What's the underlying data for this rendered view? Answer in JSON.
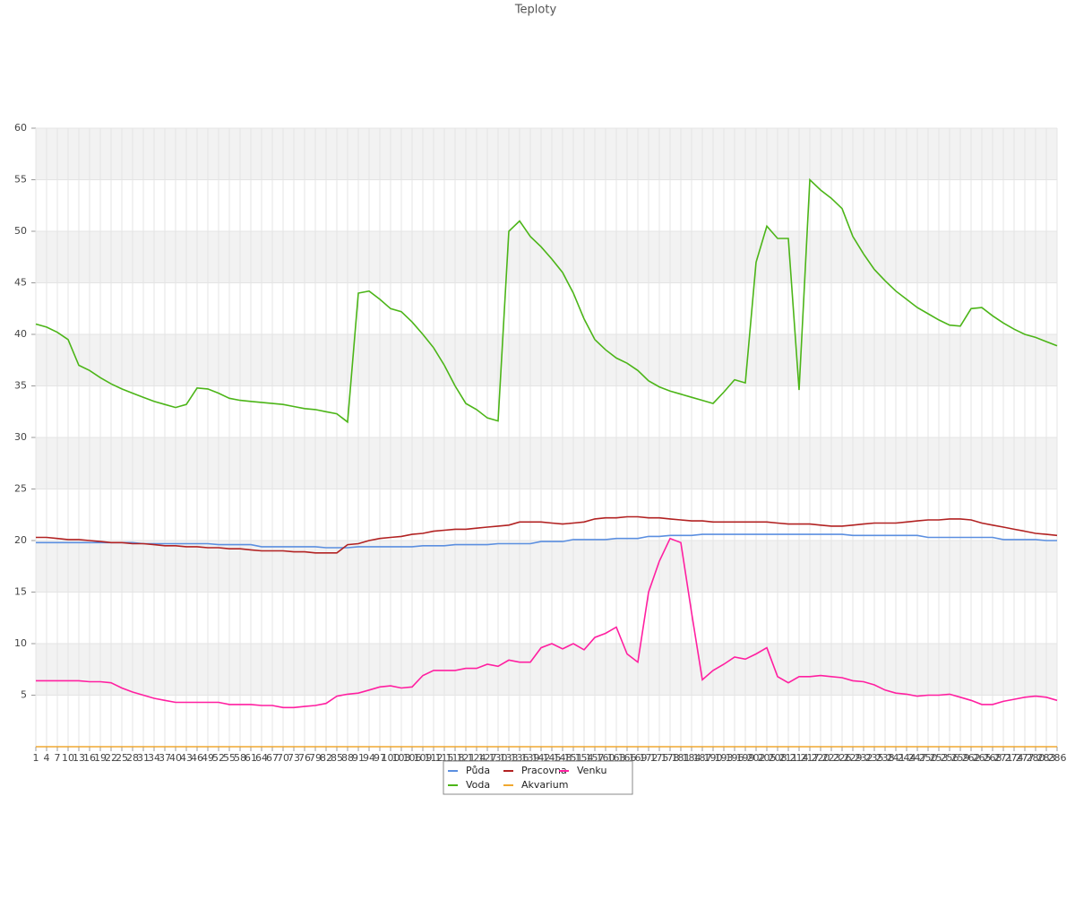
{
  "chart_data": {
    "type": "line",
    "title": "Teploty",
    "x": [
      1,
      4,
      7,
      10,
      13,
      16,
      19,
      22,
      25,
      28,
      31,
      34,
      37,
      40,
      43,
      46,
      49,
      52,
      55,
      58,
      61,
      64,
      67,
      70,
      73,
      76,
      79,
      82,
      85,
      88,
      91,
      94,
      97,
      100,
      103,
      106,
      109,
      112,
      115,
      118,
      121,
      124,
      127,
      130,
      133,
      136,
      139,
      142,
      145,
      148,
      151,
      154,
      157,
      160,
      163,
      166,
      169,
      172,
      175,
      178,
      181,
      184,
      187,
      190,
      193,
      196,
      199,
      202,
      205,
      208,
      211,
      214,
      217,
      220,
      223,
      226,
      229,
      232,
      235,
      238,
      241,
      244,
      247,
      250,
      253,
      256,
      259,
      262,
      265,
      268,
      271,
      274,
      277,
      280,
      283,
      286
    ],
    "xlim": [
      1,
      286
    ],
    "ylim": [
      0,
      60
    ],
    "yticks": [
      5,
      10,
      15,
      20,
      25,
      30,
      35,
      40,
      45,
      50,
      55,
      60
    ],
    "grid": true,
    "series": [
      {
        "name": "Půda",
        "color": "#5b8fe0",
        "values": [
          19.8,
          19.8,
          19.8,
          19.8,
          19.8,
          19.8,
          19.8,
          19.8,
          19.8,
          19.8,
          19.7,
          19.7,
          19.7,
          19.7,
          19.7,
          19.7,
          19.7,
          19.6,
          19.6,
          19.6,
          19.6,
          19.4,
          19.4,
          19.4,
          19.4,
          19.4,
          19.4,
          19.3,
          19.3,
          19.3,
          19.4,
          19.4,
          19.4,
          19.4,
          19.4,
          19.4,
          19.5,
          19.5,
          19.5,
          19.6,
          19.6,
          19.6,
          19.6,
          19.7,
          19.7,
          19.7,
          19.7,
          19.9,
          19.9,
          19.9,
          20.1,
          20.1,
          20.1,
          20.1,
          20.2,
          20.2,
          20.2,
          20.4,
          20.4,
          20.5,
          20.5,
          20.5,
          20.6,
          20.6,
          20.6,
          20.6,
          20.6,
          20.6,
          20.6,
          20.6,
          20.6,
          20.6,
          20.6,
          20.6,
          20.6,
          20.6,
          20.5,
          20.5,
          20.5,
          20.5,
          20.5,
          20.5,
          20.5,
          20.3,
          20.3,
          20.3,
          20.3,
          20.3,
          20.3,
          20.3,
          20.1,
          20.1,
          20.1,
          20.1,
          20.0,
          20.0
        ]
      },
      {
        "name": "Voda",
        "color": "#4cb518",
        "values": [
          41.0,
          40.7,
          40.2,
          39.5,
          37.0,
          36.5,
          35.8,
          35.2,
          34.7,
          34.3,
          33.9,
          33.5,
          33.2,
          32.9,
          33.2,
          34.8,
          34.7,
          34.3,
          33.8,
          33.6,
          33.5,
          33.4,
          33.3,
          33.2,
          33.0,
          32.8,
          32.7,
          32.5,
          32.3,
          31.5,
          44.0,
          44.2,
          43.4,
          42.5,
          42.2,
          41.2,
          40.0,
          38.7,
          37.0,
          35.0,
          33.3,
          32.7,
          31.9,
          31.6,
          50.0,
          51.0,
          49.5,
          48.5,
          47.3,
          46.0,
          44.0,
          41.5,
          39.5,
          38.5,
          37.7,
          37.2,
          36.5,
          35.5,
          34.9,
          34.5,
          34.2,
          33.9,
          33.6,
          33.3,
          34.4,
          35.6,
          35.3,
          47.0,
          50.5,
          49.3,
          49.3,
          34.6,
          55.0,
          54.0,
          53.2,
          52.2,
          49.5,
          47.8,
          46.3,
          45.2,
          44.2,
          43.4,
          42.6,
          42.0,
          41.4,
          40.9,
          40.8,
          42.5,
          42.6,
          41.8,
          41.1,
          40.5,
          40.0,
          39.7,
          39.3,
          38.9
        ]
      },
      {
        "name": "Pracovna",
        "color": "#b22222",
        "values": [
          20.3,
          20.3,
          20.2,
          20.1,
          20.1,
          20.0,
          19.9,
          19.8,
          19.8,
          19.7,
          19.7,
          19.6,
          19.5,
          19.5,
          19.4,
          19.4,
          19.3,
          19.3,
          19.2,
          19.2,
          19.1,
          19.0,
          19.0,
          19.0,
          18.9,
          18.9,
          18.8,
          18.8,
          18.8,
          19.6,
          19.7,
          20.0,
          20.2,
          20.3,
          20.4,
          20.6,
          20.7,
          20.9,
          21.0,
          21.1,
          21.1,
          21.2,
          21.3,
          21.4,
          21.5,
          21.8,
          21.8,
          21.8,
          21.7,
          21.6,
          21.7,
          21.8,
          22.1,
          22.2,
          22.2,
          22.3,
          22.3,
          22.2,
          22.2,
          22.1,
          22.0,
          21.9,
          21.9,
          21.8,
          21.8,
          21.8,
          21.8,
          21.8,
          21.8,
          21.7,
          21.6,
          21.6,
          21.6,
          21.5,
          21.4,
          21.4,
          21.5,
          21.6,
          21.7,
          21.7,
          21.7,
          21.8,
          21.9,
          22.0,
          22.0,
          22.1,
          22.1,
          22.0,
          21.7,
          21.5,
          21.3,
          21.1,
          20.9,
          20.7,
          20.6,
          20.5
        ]
      },
      {
        "name": "Akvarium",
        "color": "#f0a830",
        "values": [
          0,
          0,
          0,
          0,
          0,
          0,
          0,
          0,
          0,
          0,
          0,
          0,
          0,
          0,
          0,
          0,
          0,
          0,
          0,
          0,
          0,
          0,
          0,
          0,
          0,
          0,
          0,
          0,
          0,
          0,
          0,
          0,
          0,
          0,
          0,
          0,
          0,
          0,
          0,
          0,
          0,
          0,
          0,
          0,
          0,
          0,
          0,
          0,
          0,
          0,
          0,
          0,
          0,
          0,
          0,
          0,
          0,
          0,
          0,
          0,
          0,
          0,
          0,
          0,
          0,
          0,
          0,
          0,
          0,
          0,
          0,
          0,
          0,
          0,
          0,
          0,
          0,
          0,
          0,
          0,
          0,
          0,
          0,
          0,
          0,
          0,
          0,
          0,
          0,
          0,
          0,
          0,
          0,
          0,
          0,
          0
        ]
      },
      {
        "name": "Venku",
        "color": "#ff1fa0",
        "values": [
          6.4,
          6.4,
          6.4,
          6.4,
          6.4,
          6.3,
          6.3,
          6.2,
          5.7,
          5.3,
          5.0,
          4.7,
          4.5,
          4.3,
          4.3,
          4.3,
          4.3,
          4.3,
          4.1,
          4.1,
          4.1,
          4.0,
          4.0,
          3.8,
          3.8,
          3.9,
          4.0,
          4.2,
          4.9,
          5.1,
          5.2,
          5.5,
          5.8,
          5.9,
          5.7,
          5.8,
          6.9,
          7.4,
          7.4,
          7.4,
          7.6,
          7.6,
          8.0,
          7.8,
          8.4,
          8.2,
          8.2,
          9.6,
          10.0,
          9.5,
          10.0,
          9.4,
          10.6,
          11.0,
          11.6,
          9.0,
          8.2,
          15.0,
          18.0,
          20.2,
          19.8,
          13.0,
          6.5,
          7.4,
          8.0,
          8.7,
          8.5,
          9.0,
          9.6,
          6.8,
          6.2,
          6.8,
          6.8,
          6.9,
          6.8,
          6.7,
          6.4,
          6.3,
          6.0,
          5.5,
          5.2,
          5.1,
          4.9,
          5.0,
          5.0,
          5.1,
          4.8,
          4.5,
          4.1,
          4.1,
          4.4,
          4.6,
          4.8,
          4.9,
          4.8,
          4.5
        ]
      }
    ]
  }
}
